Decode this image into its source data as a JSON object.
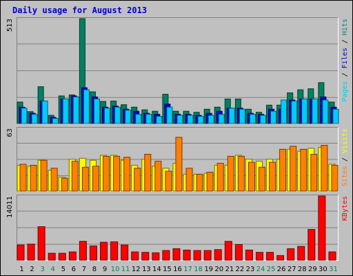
{
  "chart_data": {
    "type": "bar",
    "title": "Daily usage for August 2013",
    "categories": [
      "1",
      "2",
      "3",
      "4",
      "5",
      "6",
      "7",
      "8",
      "9",
      "10",
      "11",
      "12",
      "13",
      "14",
      "15",
      "16",
      "17",
      "18",
      "19",
      "20",
      "21",
      "22",
      "23",
      "24",
      "25",
      "26",
      "27",
      "28",
      "29",
      "30",
      "31"
    ],
    "weekend_days": [
      "3",
      "4",
      "10",
      "11",
      "17",
      "18",
      "24",
      "25",
      "31"
    ],
    "panels": [
      {
        "ymax_label": "513",
        "ylim": [
          0,
          513
        ],
        "legend": [
          {
            "text": "Pages",
            "color": "#00ccff"
          },
          {
            "text": " / ",
            "color": "#000000"
          },
          {
            "text": "Files",
            "color": "#0000cc"
          },
          {
            "text": " / ",
            "color": "#000000"
          },
          {
            "text": "Hits",
            "color": "#008080"
          }
        ],
        "series": [
          {
            "name": "Hits",
            "color": "#008060",
            "values": [
              105,
              58,
              180,
              40,
              135,
              140,
              513,
              155,
              108,
              110,
              92,
              80,
              67,
              60,
              143,
              60,
              60,
              55,
              70,
              80,
              120,
              120,
              70,
              55,
              90,
              90,
              150,
              165,
              170,
              200,
              105
            ]
          },
          {
            "name": "Files",
            "color": "#0000cc",
            "values": [
              80,
              50,
              110,
              30,
              120,
              135,
              175,
              130,
              80,
              85,
              70,
              60,
              50,
              45,
              95,
              45,
              45,
              40,
              50,
              60,
              75,
              75,
              50,
              45,
              70,
              70,
              115,
              120,
              120,
              130,
              80
            ]
          },
          {
            "name": "Pages",
            "color": "#00ccff",
            "values": [
              75,
              45,
              110,
              25,
              120,
              130,
              165,
              120,
              75,
              80,
              65,
              45,
              45,
              35,
              80,
              40,
              40,
              35,
              40,
              45,
              75,
              70,
              45,
              40,
              60,
              115,
              110,
              120,
              120,
              115,
              70
            ]
          }
        ]
      },
      {
        "ymax_label": "63",
        "ylim": [
          0,
          63
        ],
        "legend": [
          {
            "text": "Sites",
            "color": "#ff8000"
          },
          {
            "text": " / ",
            "color": "#000000"
          },
          {
            "text": "Visits",
            "color": "#ffff00"
          }
        ],
        "series": [
          {
            "name": "Visits",
            "color": "#ffff00",
            "values": [
              26,
              25,
              31,
              21,
              14,
              32,
              33,
              31,
              36,
              36,
              31,
              26,
              32,
              25,
              23,
              28,
              17,
              17,
              18,
              26,
              26,
              36,
              32,
              30,
              32,
              32,
              42,
              40,
              43,
              44,
              27
            ]
          },
          {
            "name": "Sites",
            "color": "#ff8000",
            "values": [
              27,
              26,
              31,
              23,
              13,
              30,
              24,
              25,
              35,
              35,
              34,
              23,
              37,
              30,
              20,
              54,
              23,
              17,
              19,
              28,
              35,
              35,
              29,
              24,
              29,
              42,
              45,
              42,
              37,
              46,
              26
            ]
          }
        ]
      },
      {
        "ymax_label": "14011",
        "ylim": [
          0,
          14011
        ],
        "legend": [
          {
            "text": "KBytes",
            "color": "#ff0000"
          }
        ],
        "series": [
          {
            "name": "KBytes",
            "color": "#ff0000",
            "values": [
              3300,
              3500,
              7300,
              1500,
              1500,
              1800,
              4100,
              3100,
              3900,
              4000,
              3300,
              1800,
              1700,
              1600,
              2100,
              2500,
              2200,
              2100,
              2100,
              2300,
              4100,
              3400,
              2200,
              1700,
              1700,
              1000,
              2500,
              3000,
              6700,
              14011,
              1800
            ]
          }
        ]
      }
    ]
  }
}
